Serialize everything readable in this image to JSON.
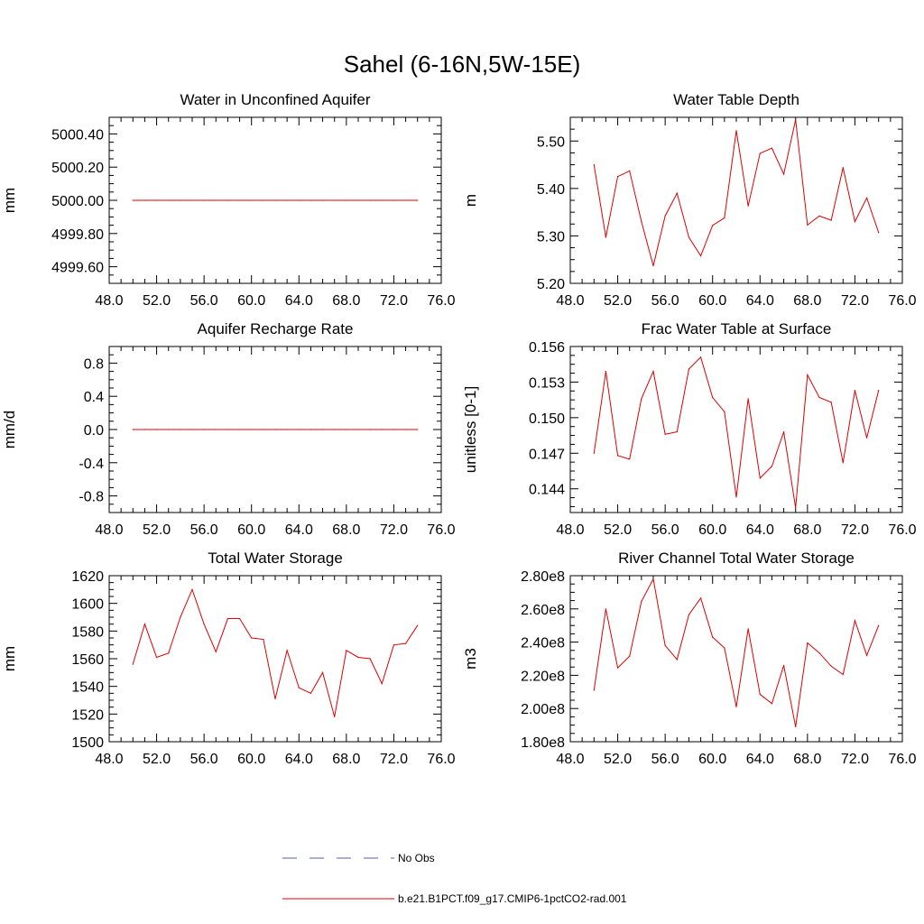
{
  "figure": {
    "title": "Sahel (6-16N,5W-15E)"
  },
  "legend": {
    "entries": [
      {
        "label": "No Obs",
        "style": "dashed",
        "color": "#5a5ab0"
      },
      {
        "label": "b.e21.B1PCT.f09_g17.CMIP6-1pctCO2-rad.001",
        "style": "solid",
        "color": "#e00000"
      }
    ]
  },
  "chart_data": [
    {
      "type": "line",
      "title": "Water in Unconfined Aquifer",
      "xlabel": "",
      "ylabel": "mm",
      "xlim": [
        48,
        76
      ],
      "ylim": [
        4999.5,
        5000.5
      ],
      "xticks": [
        48,
        52,
        56,
        60,
        64,
        68,
        72,
        76
      ],
      "xtick_labels": [
        "48.0",
        "52.0",
        "56.0",
        "60.0",
        "64.0",
        "68.0",
        "72.0",
        "76.0"
      ],
      "yticks": [
        4999.6,
        4999.8,
        5000.0,
        5000.2,
        5000.4
      ],
      "ytick_labels": [
        "4999.60",
        "4999.80",
        "5000.00",
        "5000.20",
        "5000.40"
      ],
      "series": [
        {
          "color": "#e00000",
          "x": [
            50,
            51,
            52,
            53,
            54,
            55,
            56,
            57,
            58,
            59,
            60,
            61,
            62,
            63,
            64,
            65,
            66,
            67,
            68,
            69,
            70,
            71,
            72,
            73,
            74
          ],
          "values": [
            5000,
            5000,
            5000,
            5000,
            5000,
            5000,
            5000,
            5000,
            5000,
            5000,
            5000,
            5000,
            5000,
            5000,
            5000,
            5000,
            5000,
            5000,
            5000,
            5000,
            5000,
            5000,
            5000,
            5000,
            5000
          ]
        }
      ]
    },
    {
      "type": "line",
      "title": "Water Table Depth",
      "xlabel": "",
      "ylabel": "m",
      "xlim": [
        48,
        76
      ],
      "ylim": [
        5.2,
        5.55
      ],
      "xticks": [
        48,
        52,
        56,
        60,
        64,
        68,
        72,
        76
      ],
      "xtick_labels": [
        "48.0",
        "52.0",
        "56.0",
        "60.0",
        "64.0",
        "68.0",
        "72.0",
        "76.0"
      ],
      "yticks": [
        5.2,
        5.3,
        5.4,
        5.5
      ],
      "ytick_labels": [
        "5.20",
        "5.30",
        "5.40",
        "5.50"
      ],
      "series": [
        {
          "color": "#e00000",
          "x": [
            50,
            51,
            52,
            53,
            54,
            55,
            56,
            57,
            58,
            59,
            60,
            61,
            62,
            63,
            64,
            65,
            66,
            67,
            68,
            69,
            70,
            71,
            72,
            73,
            74
          ],
          "values": [
            5.45,
            5.297,
            5.425,
            5.437,
            5.33,
            5.237,
            5.342,
            5.39,
            5.297,
            5.258,
            5.322,
            5.338,
            5.522,
            5.363,
            5.474,
            5.485,
            5.43,
            5.545,
            5.323,
            5.342,
            5.333,
            5.444,
            5.33,
            5.38,
            5.307
          ]
        }
      ]
    },
    {
      "type": "line",
      "title": "Aquifer Recharge Rate",
      "xlabel": "",
      "ylabel": "mm/d",
      "xlim": [
        48,
        76
      ],
      "ylim": [
        -1.0,
        1.0
      ],
      "xticks": [
        48,
        52,
        56,
        60,
        64,
        68,
        72,
        76
      ],
      "xtick_labels": [
        "48.0",
        "52.0",
        "56.0",
        "60.0",
        "64.0",
        "68.0",
        "72.0",
        "76.0"
      ],
      "yticks": [
        -0.8,
        -0.4,
        0.0,
        0.4,
        0.8
      ],
      "ytick_labels": [
        "-0.8",
        "-0.4",
        "0.0",
        "0.4",
        "0.8"
      ],
      "series": [
        {
          "color": "#e00000",
          "x": [
            50,
            51,
            52,
            53,
            54,
            55,
            56,
            57,
            58,
            59,
            60,
            61,
            62,
            63,
            64,
            65,
            66,
            67,
            68,
            69,
            70,
            71,
            72,
            73,
            74
          ],
          "values": [
            0,
            0,
            0,
            0,
            0,
            0,
            0,
            0,
            0,
            0,
            0,
            0,
            0,
            0,
            0,
            0,
            0,
            0,
            0,
            0,
            0,
            0,
            0,
            0,
            0
          ]
        }
      ]
    },
    {
      "type": "line",
      "title": "Frac Water Table at Surface",
      "xlabel": "",
      "ylabel": "unitless [0-1]",
      "xlim": [
        48,
        76
      ],
      "ylim": [
        0.142,
        0.156
      ],
      "xticks": [
        48,
        52,
        56,
        60,
        64,
        68,
        72,
        76
      ],
      "xtick_labels": [
        "48.0",
        "52.0",
        "56.0",
        "60.0",
        "64.0",
        "68.0",
        "72.0",
        "76.0"
      ],
      "yticks": [
        0.144,
        0.147,
        0.15,
        0.153,
        0.156
      ],
      "ytick_labels": [
        "0.144",
        "0.147",
        "0.150",
        "0.153",
        "0.156"
      ],
      "series": [
        {
          "color": "#e00000",
          "x": [
            50,
            51,
            52,
            53,
            54,
            55,
            56,
            57,
            58,
            59,
            60,
            61,
            62,
            63,
            64,
            65,
            66,
            67,
            68,
            69,
            70,
            71,
            72,
            73,
            74
          ],
          "values": [
            0.147,
            0.1539,
            0.1468,
            0.1465,
            0.1516,
            0.1539,
            0.1486,
            0.1488,
            0.1541,
            0.1551,
            0.1517,
            0.1505,
            0.1433,
            0.1516,
            0.1449,
            0.1459,
            0.1488,
            0.1424,
            0.1536,
            0.1517,
            0.1513,
            0.1462,
            0.1523,
            0.1483,
            0.1523
          ]
        }
      ]
    },
    {
      "type": "line",
      "title": "Total Water Storage",
      "xlabel": "",
      "ylabel": "mm",
      "xlim": [
        48,
        76
      ],
      "ylim": [
        1500,
        1620
      ],
      "xticks": [
        48,
        52,
        56,
        60,
        64,
        68,
        72,
        76
      ],
      "xtick_labels": [
        "48.0",
        "52.0",
        "56.0",
        "60.0",
        "64.0",
        "68.0",
        "72.0",
        "76.0"
      ],
      "yticks": [
        1500,
        1520,
        1540,
        1560,
        1580,
        1600,
        1620
      ],
      "ytick_labels": [
        "1500",
        "1520",
        "1540",
        "1560",
        "1580",
        "1600",
        "1620"
      ],
      "series": [
        {
          "color": "#e00000",
          "x": [
            50,
            51,
            52,
            53,
            54,
            55,
            56,
            57,
            58,
            59,
            60,
            61,
            62,
            63,
            64,
            65,
            66,
            67,
            68,
            69,
            70,
            71,
            72,
            73,
            74
          ],
          "values": [
            1556,
            1585,
            1561,
            1564,
            1590,
            1610,
            1585,
            1565,
            1589,
            1589,
            1575,
            1574,
            1531,
            1566,
            1539,
            1535,
            1550,
            1518,
            1566,
            1561,
            1560,
            1542,
            1570,
            1571,
            1584
          ]
        }
      ]
    },
    {
      "type": "line",
      "title": "River Channel Total Water Storage",
      "xlabel": "",
      "ylabel": "m3",
      "xlim": [
        48,
        76
      ],
      "ylim": [
        180000000,
        280000000
      ],
      "xticks": [
        48,
        52,
        56,
        60,
        64,
        68,
        72,
        76
      ],
      "xtick_labels": [
        "48.0",
        "52.0",
        "56.0",
        "60.0",
        "64.0",
        "68.0",
        "72.0",
        "76.0"
      ],
      "yticks": [
        180000000,
        200000000,
        220000000,
        240000000,
        260000000,
        280000000
      ],
      "ytick_labels": [
        "1.80e8",
        "2.00e8",
        "2.20e8",
        "2.40e8",
        "2.60e8",
        "2.80e8"
      ],
      "series": [
        {
          "color": "#e00000",
          "x": [
            50,
            51,
            52,
            53,
            54,
            55,
            56,
            57,
            58,
            59,
            60,
            61,
            62,
            63,
            64,
            65,
            66,
            67,
            68,
            69,
            70,
            71,
            72,
            73,
            74
          ],
          "values": [
            211000000,
            260000000,
            224500000,
            231500000,
            264500000,
            278000000,
            238000000,
            229500000,
            256500000,
            266500000,
            243000000,
            236500000,
            201000000,
            248000000,
            208500000,
            203000000,
            226000000,
            189000000,
            239500000,
            233500000,
            225500000,
            220500000,
            253000000,
            232000000,
            250000000
          ]
        }
      ]
    }
  ]
}
